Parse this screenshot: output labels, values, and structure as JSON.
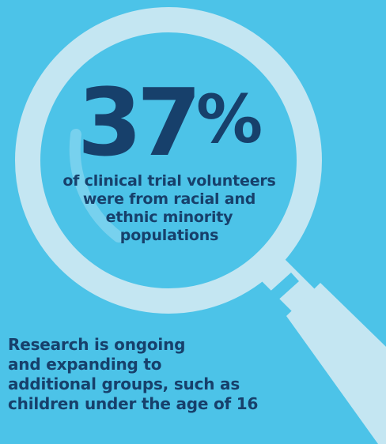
{
  "colors": {
    "background": "#4cc3e8",
    "lens_ring": "#c4e6f2",
    "handle": "#c4e6f2",
    "text": "#17406b"
  },
  "icons": {
    "magnifier": "magnifying-glass-icon"
  },
  "stat": {
    "number": "37",
    "percent_sign": "%",
    "caption_lines": [
      "of clinical trial volunteers",
      "were from racial and",
      "ethnic minority",
      "populations"
    ]
  },
  "footnote": {
    "lines": [
      "Research is ongoing",
      "and expanding to",
      "additional groups, such as",
      "children under the age of 16"
    ]
  }
}
